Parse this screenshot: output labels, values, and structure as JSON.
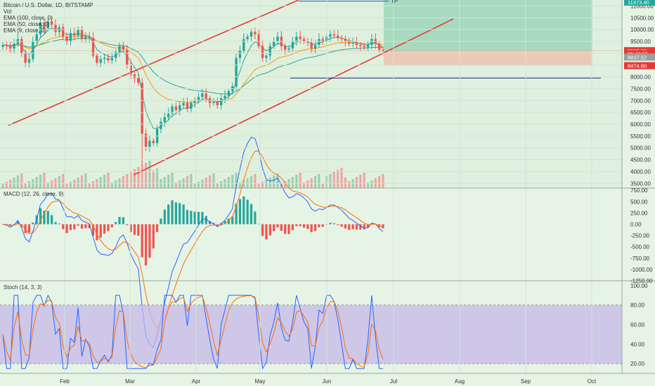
{
  "chart_data": [
    {
      "type": "candlestick",
      "title": "Bitcoin / U.S. Dollar, 1D, BITSTAMP",
      "legend": [
        "Vol",
        "EMA (100, close, 0)",
        "EMA (50, close, 0)",
        "EMA (9, close, 0)"
      ],
      "y_ticks": [
        "11000.00",
        "10500.00",
        "10000.00",
        "9500.00",
        "9000.00",
        "8500.00",
        "8000.00",
        "7500.00",
        "7000.00",
        "6500.00",
        "6000.00",
        "5500.00",
        "5000.00",
        "4500.00",
        "4000.00",
        "3500.00"
      ],
      "ylim": [
        3300,
        11250
      ],
      "x_ticks": [
        "Feb",
        "Mar",
        "Apr",
        "May",
        "Jun",
        "Jul",
        "Aug",
        "Sep",
        "Oct"
      ],
      "price_labels": [
        {
          "text": "9109.08",
          "value": 9109.08,
          "color": "#e53935"
        },
        {
          "text": "06:43:55",
          "value": 8980,
          "color": "#e53935"
        },
        {
          "text": "8837.52",
          "value": 8837.52,
          "color": "#9e9e9e"
        },
        {
          "text": "8474.80",
          "value": 8474.8,
          "color": "#e53935"
        },
        {
          "text": "11373.40",
          "value": 11373.4,
          "color": "#26a69a"
        }
      ],
      "target_label": "TP",
      "close_approx": [
        9350,
        9300,
        9200,
        9400,
        9600,
        9000,
        8600,
        8750,
        9500,
        9800,
        10300,
        10050,
        10350,
        10200,
        9900,
        10100,
        9700,
        9500,
        9850,
        9750,
        10000,
        9600,
        9700,
        9650,
        8900,
        8600,
        8750,
        8800,
        8700,
        8800,
        9050,
        9300,
        9150,
        8500,
        8100,
        7950,
        7750,
        5600,
        5050,
        5300,
        5200,
        5800,
        6100,
        6300,
        6450,
        6750,
        6600,
        6800,
        6900,
        6650,
        6900,
        7000,
        7150,
        7300,
        7100,
        6900,
        6950,
        6800,
        7100,
        7200,
        7400,
        7600,
        8800,
        9100,
        9600,
        9700,
        9900,
        9800,
        9300,
        8800,
        8900,
        9300,
        9500,
        9700,
        9300,
        9150,
        9200,
        9500,
        9700,
        9600,
        9500,
        9450,
        9200,
        9350,
        9600,
        9500,
        9700,
        9800,
        9750,
        9650,
        9600,
        9500,
        9400,
        9450,
        9350,
        9300,
        9250,
        9350,
        9600,
        9400,
        9150,
        9109
      ],
      "ema_lines": {
        "ema9": "short",
        "ema50": "medium",
        "ema100": "long"
      },
      "annotations": {
        "trendline_upper": {
          "from": [
            "early Jan",
            5950
          ],
          "to": [
            "mid May",
            11250
          ]
        },
        "trendline_lower": {
          "from": [
            "early Mar",
            3850
          ],
          "to": [
            "mid Jul",
            10450
          ]
        },
        "position": {
          "entry": 9109.08,
          "target": 11373.4,
          "stop": 8474.8
        },
        "support_line": 7950,
        "resistance_line": 11200
      }
    },
    {
      "type": "line",
      "title": "MACD (12, 26, close, 9)",
      "y_ticks": [
        "750.00",
        "500.00",
        "250.00",
        "0.00",
        "-250.00",
        "-500.00",
        "-750.00",
        "-1000.00",
        "-1250.00"
      ],
      "ylim": [
        -1250,
        800
      ]
    },
    {
      "type": "line",
      "title": "Stoch (14, 3, 3)",
      "y_ticks": [
        "100.00",
        "80.00",
        "60.00",
        "40.00",
        "20.00"
      ],
      "ylim": [
        10,
        105
      ],
      "bands": [
        20,
        80
      ]
    }
  ]
}
